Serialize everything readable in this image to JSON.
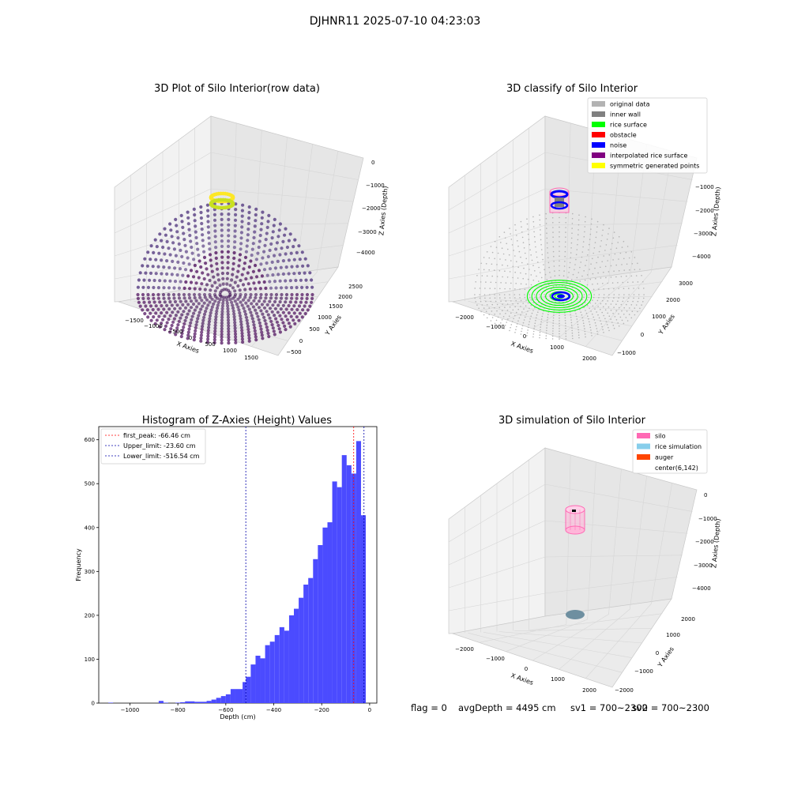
{
  "figure": {
    "title": "DJHNR11 2025-07-10 04:23:03"
  },
  "status": {
    "flag": "flag = 0",
    "avg_depth": "avgDepth = 4495 cm",
    "sv1": "sv1 = 700~2300",
    "sv2": "sv2 = 700~2300"
  },
  "chart_data": [
    {
      "type": "scatter3d",
      "title": "3D Plot of Silo Interior(row data)",
      "xlabel": "X Axies",
      "ylabel": "Y Axies",
      "zlabel": "Z Axies (Depth)",
      "x_ticks": [
        "−1500",
        "−1000",
        "−500",
        "0",
        "500",
        "1000",
        "1500"
      ],
      "y_ticks": [
        "−500",
        "0",
        "500",
        "1000",
        "1500",
        "2000",
        "2500"
      ],
      "z_ticks": [
        "0",
        "−1000",
        "−2000",
        "−3000",
        "−4000"
      ],
      "colormap": "viridis",
      "colors": {
        "low": "#440154",
        "mid": "#6c5591",
        "high": "#fde725"
      }
    },
    {
      "type": "scatter3d",
      "title": "3D classify of Silo Interior",
      "xlabel": "X Axies",
      "ylabel": "Y Axies",
      "zlabel": "Z Axies (Depth)",
      "x_ticks": [
        "−2000",
        "−1000",
        "0",
        "1000",
        "2000"
      ],
      "y_ticks": [
        "−1000",
        "0",
        "1000",
        "2000",
        "3000"
      ],
      "z_ticks": [
        "−1000",
        "−2000",
        "−3000",
        "−4000"
      ],
      "legend_position": "top-right",
      "legend": [
        {
          "label": "original data",
          "color": "#b3b3b3"
        },
        {
          "label": "inner wall",
          "color": "#808080"
        },
        {
          "label": "rice surface",
          "color": "#00ff00"
        },
        {
          "label": "obstacle",
          "color": "#ff0000"
        },
        {
          "label": "noise",
          "color": "#0000ff"
        },
        {
          "label": "interpolated rice surface",
          "color": "#800080"
        },
        {
          "label": "symmetric generated points",
          "color": "#ffff00"
        }
      ]
    },
    {
      "type": "bar",
      "title": "Histogram of Z-Axies (Height) Values",
      "xlabel": "Depth (cm)",
      "ylabel": "Frequency",
      "xlim": [
        -1130,
        30
      ],
      "ylim": [
        0,
        630
      ],
      "x_ticks": [
        -1000,
        -800,
        -600,
        -400,
        -200,
        0
      ],
      "x_tick_labels": [
        "−1000",
        "−800",
        "−600",
        "−400",
        "−200",
        "0"
      ],
      "y_ticks": [
        0,
        100,
        200,
        300,
        400,
        500,
        600
      ],
      "bar_color": "#4b4bff",
      "bins": [
        [
          -1090,
          -1070,
          1
        ],
        [
          -880,
          -860,
          5
        ],
        [
          -860,
          -840,
          1
        ],
        [
          -810,
          -790,
          1
        ],
        [
          -790,
          -770,
          2
        ],
        [
          -770,
          -730,
          4
        ],
        [
          -730,
          -680,
          3
        ],
        [
          -680,
          -660,
          5
        ],
        [
          -660,
          -640,
          8
        ],
        [
          -640,
          -620,
          12
        ],
        [
          -620,
          -600,
          16
        ],
        [
          -600,
          -580,
          20
        ],
        [
          -580,
          -560,
          32
        ],
        [
          -560,
          -530,
          32
        ],
        [
          -530,
          -516,
          48
        ],
        [
          -516,
          -496,
          60
        ],
        [
          -496,
          -476,
          88
        ],
        [
          -476,
          -456,
          108
        ],
        [
          -456,
          -436,
          102
        ],
        [
          -436,
          -416,
          132
        ],
        [
          -416,
          -396,
          140
        ],
        [
          -396,
          -376,
          155
        ],
        [
          -376,
          -356,
          173
        ],
        [
          -356,
          -336,
          165
        ],
        [
          -336,
          -316,
          200
        ],
        [
          -316,
          -296,
          215
        ],
        [
          -296,
          -276,
          240
        ],
        [
          -276,
          -256,
          270
        ],
        [
          -256,
          -236,
          285
        ],
        [
          -236,
          -216,
          328
        ],
        [
          -216,
          -196,
          360
        ],
        [
          -196,
          -176,
          400
        ],
        [
          -176,
          -156,
          412
        ],
        [
          -156,
          -136,
          505
        ],
        [
          -136,
          -116,
          492
        ],
        [
          -116,
          -96,
          565
        ],
        [
          -96,
          -76,
          542
        ],
        [
          -76,
          -56,
          523
        ],
        [
          -56,
          -36,
          597
        ],
        [
          -36,
          -16,
          428
        ]
      ],
      "vlines": [
        {
          "label": "first_peak: -66.46 cm",
          "x": -66.46,
          "color": "#ff0000"
        },
        {
          "label": "Upper_limit: -23.60 cm",
          "x": -23.6,
          "color": "#0000aa"
        },
        {
          "label": "Lower_limit: -516.54 cm",
          "x": -516.54,
          "color": "#0000aa"
        }
      ],
      "legend_position": "top-left"
    },
    {
      "type": "scatter3d",
      "title": "3D simulation of Silo Interior",
      "xlabel": "X Axies",
      "ylabel": "Y Axies",
      "zlabel": "Z Axies (Depth)",
      "x_ticks": [
        "−2000",
        "−1000",
        "0",
        "1000",
        "2000"
      ],
      "y_ticks": [
        "−2000",
        "−1000",
        "0",
        "1000",
        "2000"
      ],
      "z_ticks": [
        "0",
        "−1000",
        "−2000",
        "−3000",
        "−4000"
      ],
      "legend_position": "top-right",
      "legend": [
        {
          "label": "silo",
          "color": "#ff69b4"
        },
        {
          "label": "rice simulation",
          "color": "#87ceeb"
        },
        {
          "label": "auger",
          "color": "#ff4500"
        },
        {
          "label": "center(6,142)",
          "color": "#ffffff"
        }
      ]
    }
  ]
}
